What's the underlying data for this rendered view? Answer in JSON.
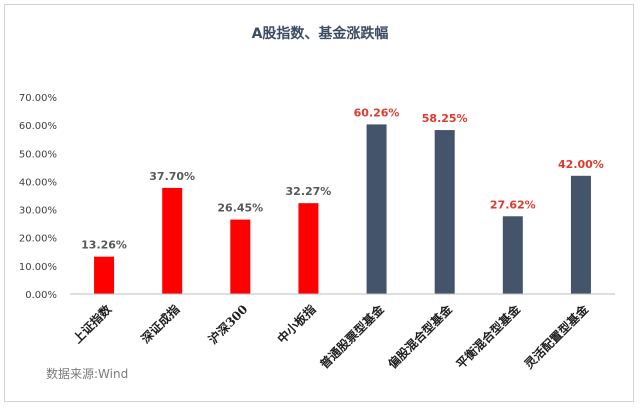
{
  "chart_data": {
    "type": "bar",
    "title": "A股指数、基金涨跌幅",
    "categories": [
      "上证指数",
      "深证成指",
      "沪深300",
      "中小板指",
      "普通股票型基金",
      "偏股混合型基金",
      "平衡混合型基金",
      "灵活配置型基金"
    ],
    "values": [
      13.26,
      37.7,
      26.45,
      32.27,
      60.26,
      58.25,
      27.62,
      42.0
    ],
    "value_labels": [
      "13.26%",
      "37.70%",
      "26.45%",
      "32.27%",
      "60.26%",
      "58.25%",
      "27.62%",
      "42.00%"
    ],
    "bar_colors": [
      "#ff0000",
      "#ff0000",
      "#ff0000",
      "#ff0000",
      "#44546a",
      "#44546a",
      "#44546a",
      "#44546a"
    ],
    "label_colors": [
      "#595959",
      "#595959",
      "#595959",
      "#595959",
      "#e03a2f",
      "#e03a2f",
      "#e03a2f",
      "#e03a2f"
    ],
    "ylim": [
      0,
      70
    ],
    "yticks": [
      0,
      10,
      20,
      30,
      40,
      50,
      60,
      70
    ],
    "ytick_labels": [
      "0.00%",
      "10.00%",
      "20.00%",
      "30.00%",
      "40.00%",
      "50.00%",
      "60.00%",
      "70.00%"
    ],
    "grid": false,
    "xlabel": "",
    "ylabel": ""
  },
  "source_note": "数据来源:Wind"
}
